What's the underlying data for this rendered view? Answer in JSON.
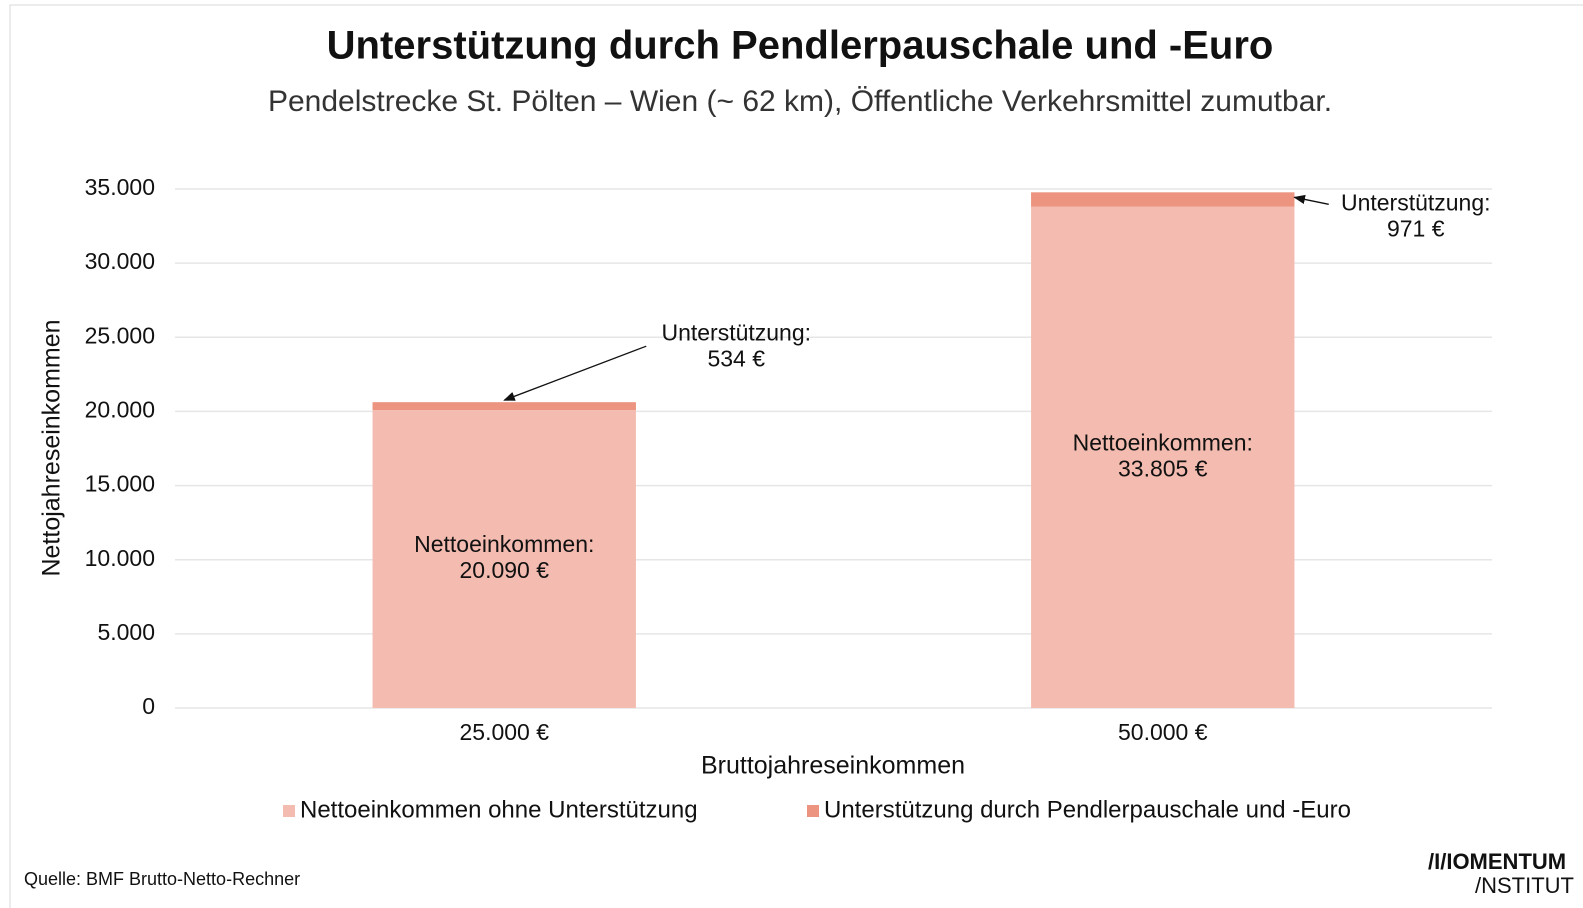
{
  "chart_data": {
    "type": "stacked_bar",
    "title": "Unterstützung durch Pendlerpauschale und -Euro",
    "subtitle": "Pendelstrecke St. Pölten – Wien (~ 62 km), Öffentliche Verkehrsmittel zumutbar.",
    "xlabel": "Bruttojahreseinkommen",
    "ylabel": "Nettojahreseinkommen",
    "categories": [
      "25.000 €",
      "50.000 €"
    ],
    "series": [
      {
        "name": "Nettoeinkommen ohne Unterstützung",
        "color": "#f4bcb0",
        "values": [
          20090,
          33805
        ],
        "label_prefix": "Nettoeinkommen:",
        "value_labels": [
          "20.090 €",
          "33.805 €"
        ]
      },
      {
        "name": "Unterstützung durch Pendlerpauschale und -Euro",
        "color": "#ec9480",
        "values": [
          534,
          971
        ],
        "label_prefix": "Unterstützung:",
        "value_labels": [
          "534 €",
          "971 €"
        ]
      }
    ],
    "ylim": [
      0,
      35000
    ],
    "yticks": [
      0,
      {
        "value": 5000,
        "label": "5.000"
      },
      {
        "value": 10000,
        "label": "10.000"
      },
      {
        "value": 15000,
        "label": "15.000"
      },
      {
        "value": 20000,
        "label": "20.000"
      },
      {
        "value": 25000,
        "label": "25.000"
      },
      {
        "value": 30000,
        "label": "30.000"
      },
      {
        "value": 35000,
        "label": "35.000"
      }
    ],
    "grid": true,
    "legend": "bottom",
    "source": "Quelle: BMF Brutto-Netto-Rechner",
    "logo": [
      "/I/IOMENTUM",
      "/NSTITUT"
    ]
  }
}
